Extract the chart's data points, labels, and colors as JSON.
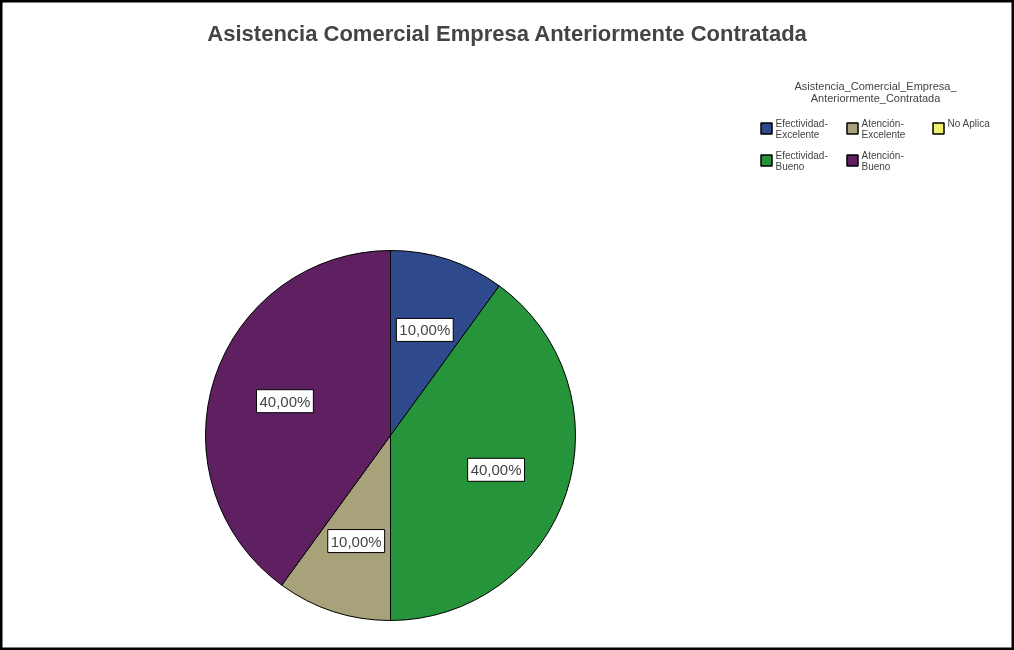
{
  "chart_data": {
    "type": "pie",
    "title": "Asistencia Comercial Empresa Anteriormente Contratada",
    "legend_title": "Asistencia_Comercial_Empresa_Anteriormente_Contratada",
    "categories": [
      "Efectividad-Excelente",
      "Efectividad-Bueno",
      "Atención-Excelente",
      "Atención-Bueno",
      "No Aplica"
    ],
    "values": [
      10,
      40,
      10,
      40,
      0
    ],
    "colors": [
      "#2e4a8c",
      "#26943a",
      "#a8a27a",
      "#5e2060",
      "#f2ef6e"
    ],
    "value_labels": [
      "10,00%",
      "40,00%",
      "10,00%",
      "40,00%",
      null
    ],
    "legend": "top right"
  }
}
